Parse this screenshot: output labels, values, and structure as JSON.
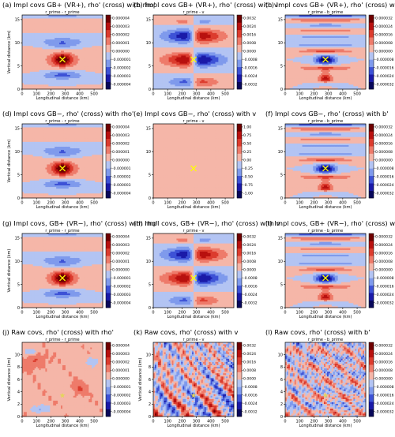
{
  "chart_data": [
    {
      "type": "heatmap",
      "label": "(a) Impl covs GB+ (VR+), rho' (cross) with rho'",
      "subtitle": "r_prime - r_prime",
      "xlabel": "Longitudinal distance (km)",
      "ylabel": "Vertical distance (km)",
      "xlim": [
        0,
        560
      ],
      "ylim": [
        0,
        16
      ],
      "xticks": [
        "0",
        "100",
        "200",
        "300",
        "400",
        "500"
      ],
      "yticks": [
        "0",
        "5",
        "10",
        "15"
      ],
      "cbar_ticks": [
        "0.000004",
        "0.000003",
        "0.000002",
        "0.000001",
        "0.000000",
        "-0.000001",
        "-0.000002",
        "-0.000003",
        "-0.000004"
      ],
      "vmax": 4e-06,
      "pattern": "rr",
      "marker": "cross",
      "marker_x": 280,
      "marker_y": 6.4
    },
    {
      "type": "heatmap",
      "label": "(b) Impl covs GB+ (VR+), rho' (cross) with v",
      "subtitle": "r_prime - v",
      "xlabel": "Longitudinal distance (km)",
      "ylabel": "",
      "xlim": [
        0,
        560
      ],
      "ylim": [
        0,
        16
      ],
      "xticks": [
        "0",
        "100",
        "200",
        "300",
        "400",
        "500"
      ],
      "yticks": [
        "0",
        "5",
        "10",
        "15"
      ],
      "cbar_ticks": [
        "0.0032",
        "0.0024",
        "0.0016",
        "0.0008",
        "0.0000",
        "-0.0008",
        "-0.0016",
        "-0.0024",
        "-0.0032"
      ],
      "vmax": 0.0032,
      "pattern": "rv",
      "marker": "cross",
      "marker_x": 280,
      "marker_y": 6.4
    },
    {
      "type": "heatmap",
      "label": "(c) Impl covs GB+ (VR+), rho' (cross) with b'",
      "subtitle": "r_prime - b_prime",
      "xlabel": "Longitudinal distance (km)",
      "ylabel": "",
      "xlim": [
        0,
        560
      ],
      "ylim": [
        0,
        16
      ],
      "xticks": [
        "0",
        "100",
        "200",
        "300",
        "400",
        "500"
      ],
      "yticks": [
        "0",
        "5",
        "10",
        "15"
      ],
      "cbar_ticks": [
        "0.000032",
        "0.000024",
        "0.000016",
        "0.000008",
        "0.000000",
        "-0.000008",
        "-0.000016",
        "-0.000024",
        "-0.000032"
      ],
      "vmax": 3.2e-05,
      "pattern": "rb",
      "marker": "cross",
      "marker_x": 280,
      "marker_y": 6.4
    },
    {
      "type": "heatmap",
      "label": "(d) Impl covs GB−, rho' (cross) with rho'",
      "subtitle": "r_prime - r_prime",
      "xlabel": "Longitudinal distance (km)",
      "ylabel": "Vertical distance (km)",
      "xlim": [
        0,
        560
      ],
      "ylim": [
        0,
        16
      ],
      "xticks": [
        "0",
        "100",
        "200",
        "300",
        "400",
        "500"
      ],
      "yticks": [
        "0",
        "5",
        "10",
        "15"
      ],
      "cbar_ticks": [
        "0.000004",
        "0.000003",
        "0.000002",
        "0.000001",
        "0.000000",
        "-0.000001",
        "-0.000002",
        "-0.000003",
        "-0.000004"
      ],
      "vmax": 4e-06,
      "pattern": "rr",
      "marker": "cross",
      "marker_x": 280,
      "marker_y": 6.4
    },
    {
      "type": "heatmap",
      "label": "(e) Impl covs GB−, rho' (cross) with v",
      "subtitle": "r_prime - v",
      "xlabel": "Longitudinal distance (km)",
      "ylabel": "",
      "xlim": [
        0,
        560
      ],
      "ylim": [
        0,
        16
      ],
      "xticks": [
        "0",
        "100",
        "200",
        "300",
        "400",
        "500"
      ],
      "yticks": [
        "0",
        "5",
        "10",
        "15"
      ],
      "cbar_ticks": [
        "1.00",
        "0.75",
        "0.50",
        "0.25",
        "0.00",
        "-0.25",
        "-0.50",
        "-0.75",
        "-1.00"
      ],
      "vmax": 1.0,
      "pattern": "zero",
      "marker": "cross",
      "marker_x": 280,
      "marker_y": 6.4
    },
    {
      "type": "heatmap",
      "label": "(f) Impl covs GB−, rho' (cross) with b'",
      "subtitle": "r_prime - b_prime",
      "xlabel": "Longitudinal distance (km)",
      "ylabel": "",
      "xlim": [
        0,
        560
      ],
      "ylim": [
        0,
        16
      ],
      "xticks": [
        "0",
        "100",
        "200",
        "300",
        "400",
        "500"
      ],
      "yticks": [
        "0",
        "5",
        "10",
        "15"
      ],
      "cbar_ticks": [
        "0.000032",
        "0.000024",
        "0.000016",
        "0.000008",
        "0.000000",
        "-0.000008",
        "-0.000016",
        "-0.000024",
        "-0.000032"
      ],
      "vmax": 3.2e-05,
      "pattern": "rb",
      "marker": "cross",
      "marker_x": 280,
      "marker_y": 6.4
    },
    {
      "type": "heatmap",
      "label": "(g) Impl covs, GB+ (VR−), rho' (cross) with rho'",
      "subtitle": "r_prime - r_prime",
      "xlabel": "Longitudinal distance (km)",
      "ylabel": "Vertical distance (km)",
      "xlim": [
        0,
        560
      ],
      "ylim": [
        0,
        16
      ],
      "xticks": [
        "0",
        "100",
        "200",
        "300",
        "400",
        "500"
      ],
      "yticks": [
        "0",
        "5",
        "10",
        "15"
      ],
      "cbar_ticks": [
        "0.000004",
        "0.000003",
        "0.000002",
        "0.000001",
        "0.000000",
        "-0.000001",
        "-0.000002",
        "-0.000003",
        "-0.000004"
      ],
      "vmax": 4e-06,
      "pattern": "rr",
      "marker": "cross",
      "marker_x": 280,
      "marker_y": 6.4
    },
    {
      "type": "heatmap",
      "label": "(h) Impl covs, GB+ (VR−), rho' (cross) with v",
      "subtitle": "r_prime - v",
      "xlabel": "Longitudinal distance (km)",
      "ylabel": "",
      "xlim": [
        0,
        560
      ],
      "ylim": [
        0,
        16
      ],
      "xticks": [
        "0",
        "100",
        "200",
        "300",
        "400",
        "500"
      ],
      "yticks": [
        "0",
        "5",
        "10",
        "15"
      ],
      "cbar_ticks": [
        "0.0032",
        "0.0024",
        "0.0016",
        "0.0008",
        "0.0000",
        "-0.0008",
        "-0.0016",
        "-0.0024",
        "-0.0032"
      ],
      "vmax": 0.0032,
      "pattern": "rv",
      "marker": "cross",
      "marker_x": 280,
      "marker_y": 6.4
    },
    {
      "type": "heatmap",
      "label": "(i) Impl covs, GB+ (VR−), rho' (cross) with b'",
      "subtitle": "r_prime - b_prime",
      "xlabel": "Longitudinal distance (km)",
      "ylabel": "",
      "xlim": [
        0,
        560
      ],
      "ylim": [
        0,
        16
      ],
      "xticks": [
        "0",
        "100",
        "200",
        "300",
        "400",
        "500"
      ],
      "yticks": [
        "0",
        "5",
        "10",
        "15"
      ],
      "cbar_ticks": [
        "0.000032",
        "0.000024",
        "0.000016",
        "0.000008",
        "0.000000",
        "-0.000008",
        "-0.000016",
        "-0.000024",
        "-0.000032"
      ],
      "vmax": 3.2e-05,
      "pattern": "rb",
      "marker": "cross",
      "marker_x": 280,
      "marker_y": 6.4
    },
    {
      "type": "heatmap",
      "label": "(j) Raw covs, rho' (cross) with rho'",
      "subtitle": "r_prime - r_prime",
      "xlabel": "Longitudinal distance (km)",
      "ylabel": "Vertical distance (km)",
      "xlim": [
        0,
        560
      ],
      "ylim": [
        0,
        12
      ],
      "xticks": [
        "0",
        "100",
        "200",
        "300",
        "400",
        "500"
      ],
      "yticks": [
        "0",
        "2",
        "4",
        "6",
        "8",
        "10"
      ],
      "cbar_ticks": [
        "0.000004",
        "0.000003",
        "0.000002",
        "0.000001",
        "0.000000",
        "-0.000001",
        "-0.000002",
        "-0.000003",
        "-0.000004"
      ],
      "vmax": 4e-06,
      "pattern": "raw_rr",
      "marker": "star",
      "marker_x": 280,
      "marker_y": 3.4
    },
    {
      "type": "heatmap",
      "label": "(k) Raw covs, rho' (cross) with v",
      "subtitle": "r_prime - v",
      "xlabel": "Longitudinal distance (km)",
      "ylabel": "Vertical distance (km)",
      "xlim": [
        0,
        560
      ],
      "ylim": [
        0,
        12
      ],
      "xticks": [
        "0",
        "100",
        "200",
        "300",
        "400",
        "500"
      ],
      "yticks": [
        "0",
        "2",
        "4",
        "6",
        "8",
        "10"
      ],
      "cbar_ticks": [
        "0.0032",
        "0.0024",
        "0.0016",
        "0.0008",
        "0.0000",
        "-0.0008",
        "-0.0016",
        "-0.0024",
        "-0.0032"
      ],
      "vmax": 0.0032,
      "pattern": "raw_rv",
      "marker": "star",
      "marker_x": 280,
      "marker_y": 3.4
    },
    {
      "type": "heatmap",
      "label": "(l) Raw covs, rho' (cross) with b'",
      "subtitle": "r_prime - b_prime",
      "xlabel": "Longitudinal distance (km)",
      "ylabel": "",
      "xlim": [
        0,
        560
      ],
      "ylim": [
        0,
        12
      ],
      "xticks": [
        "0",
        "100",
        "200",
        "300",
        "400",
        "500"
      ],
      "yticks": [
        "0",
        "2",
        "4",
        "6",
        "8",
        "10"
      ],
      "cbar_ticks": [
        "0.000032",
        "0.000024",
        "0.000016",
        "0.000008",
        "0.000000",
        "-0.000008",
        "-0.000016",
        "-0.000024",
        "-0.000032"
      ],
      "vmax": 3.2e-05,
      "pattern": "raw_rb",
      "marker": "star",
      "marker_x": 280,
      "marker_y": 3.4
    }
  ],
  "colors": {
    "colormap": [
      "#08085a",
      "#1a1aa8",
      "#3d52d6",
      "#7f9aec",
      "#b3c4f3",
      "#f5b6a8",
      "#ee7b6a",
      "#dc3c2e",
      "#b8110f",
      "#6e0000"
    ],
    "contour": "#222222",
    "marker_cross": "#ffff00",
    "marker_star": "#e3d65a",
    "axes": "#000000"
  }
}
